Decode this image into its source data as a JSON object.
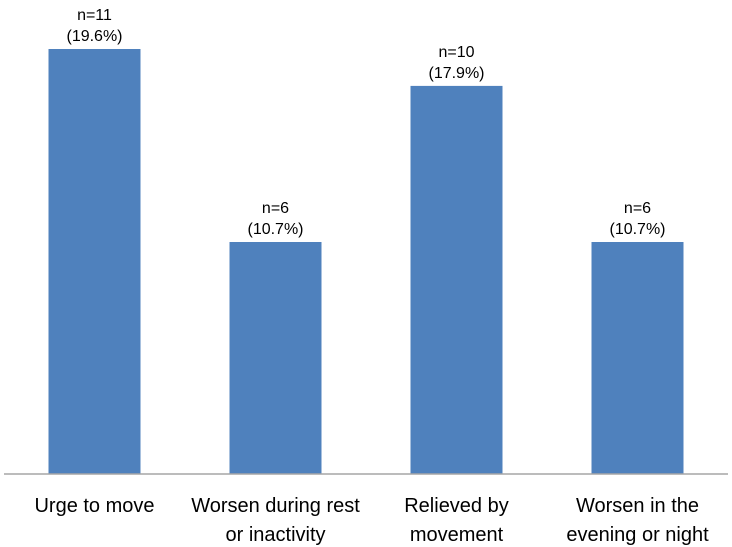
{
  "chart_data": {
    "type": "bar",
    "categories": [
      [
        "Urge to move"
      ],
      [
        "Worsen during rest",
        "or inactivity"
      ],
      [
        "Relieved by",
        "movement"
      ],
      [
        "Worsen in the",
        "evening or night"
      ]
    ],
    "values": [
      19.6,
      10.7,
      17.9,
      10.7
    ],
    "counts": [
      11,
      6,
      10,
      6
    ],
    "data_labels": [
      [
        "n=11",
        "(19.6%)"
      ],
      [
        "n=6",
        "(10.7%)"
      ],
      [
        "n=10",
        "(17.9%)"
      ],
      [
        "n=6",
        "(10.7%)"
      ]
    ],
    "title": "",
    "xlabel": "",
    "ylabel": "",
    "ylim": [
      0,
      20
    ],
    "grid": false,
    "legend": "none",
    "bar_color": "#4f81bd",
    "axis_color": "#a6a6a6"
  }
}
